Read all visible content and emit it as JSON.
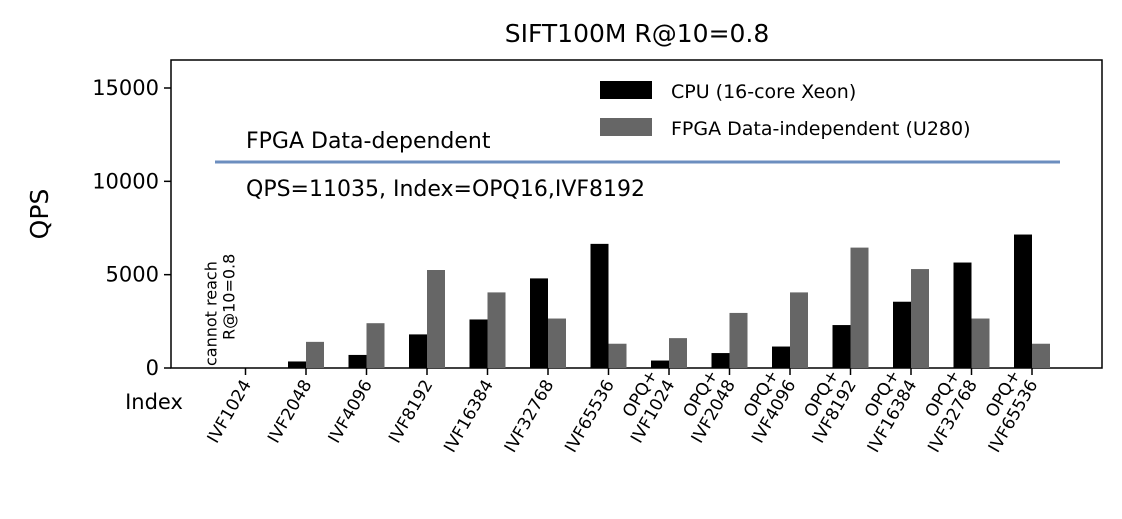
{
  "chart_data": {
    "type": "bar",
    "title": "SIFT100M R@10=0.8",
    "xlabel": "Index",
    "ylabel": "QPS",
    "ylim": [
      0,
      16500
    ],
    "yticks": [
      0,
      5000,
      10000,
      15000
    ],
    "grid": false,
    "legend_position": "top-right",
    "categories": [
      "IVF1024",
      "IVF2048",
      "IVF4096",
      "IVF8192",
      "IVF16384",
      "IVF32768",
      "IVF65536",
      "OPQ+\nIVF1024",
      "OPQ+\nIVF2048",
      "OPQ+\nIVF4096",
      "OPQ+\nIVF8192",
      "OPQ+\nIVF16384",
      "OPQ+\nIVF32768",
      "OPQ+\nIVF65536"
    ],
    "series": [
      {
        "name": "CPU (16-core Xeon)",
        "color": "#000000",
        "values": [
          0,
          350,
          700,
          1800,
          2600,
          4800,
          6650,
          400,
          800,
          1150,
          2300,
          3550,
          5650,
          7150
        ]
      },
      {
        "name": "FPGA Data-independent (U280)",
        "color": "#666666",
        "values": [
          0,
          1400,
          2400,
          5250,
          4050,
          2650,
          1300,
          1600,
          2950,
          4050,
          6450,
          5300,
          2650,
          1300
        ]
      }
    ],
    "reference_line": {
      "value": 11035,
      "color": "#6c8ebf",
      "label_above": "FPGA Data-dependent",
      "label_below": "QPS=11035, Index=OPQ16,IVF8192"
    },
    "annotations": [
      {
        "category_index": 0,
        "lines": [
          "cannot reach",
          "R@10=0.8"
        ]
      }
    ]
  }
}
